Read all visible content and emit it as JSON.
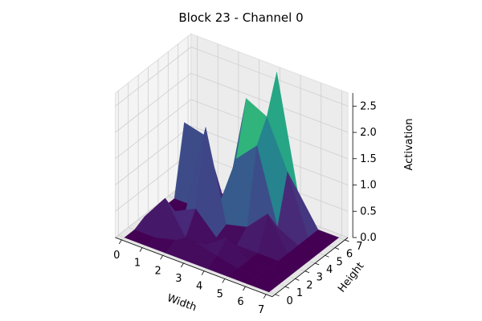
{
  "chart_data": {
    "type": "surface3d",
    "title": "Block 23 - Channel 0",
    "xlabel": "Width",
    "ylabel": "Height",
    "zlabel": "Activation",
    "x": [
      0,
      1,
      2,
      3,
      4,
      5,
      6,
      7
    ],
    "y": [
      0,
      1,
      2,
      3,
      4,
      5,
      6,
      7
    ],
    "xticks": [
      "0",
      "1",
      "2",
      "3",
      "4",
      "5",
      "6",
      "7"
    ],
    "yticks": [
      "0",
      "1",
      "2",
      "3",
      "4",
      "5",
      "6",
      "7"
    ],
    "zticks": [
      "0.0",
      "0.5",
      "1.0",
      "1.5",
      "2.0",
      "2.5"
    ],
    "zlim": [
      0,
      2.75
    ],
    "colormap": "viridis",
    "grid": true,
    "z": [
      [
        0.0,
        0.0,
        0.0,
        0.0,
        0.0,
        0.0,
        0.0,
        0.0
      ],
      [
        0.0,
        0.0,
        0.1,
        0.2,
        0.1,
        0.0,
        0.0,
        0.0
      ],
      [
        0.1,
        0.6,
        0.0,
        0.0,
        0.3,
        0.0,
        0.0,
        0.0
      ],
      [
        0.0,
        0.2,
        0.4,
        0.0,
        0.0,
        0.0,
        0.0,
        0.0
      ],
      [
        0.0,
        0.0,
        1.8,
        0.1,
        0.2,
        0.6,
        0.0,
        0.0
      ],
      [
        0.0,
        0.0,
        0.0,
        1.2,
        1.6,
        0.2,
        0.0,
        0.0
      ],
      [
        1.3,
        1.2,
        0.0,
        2.2,
        2.0,
        1.1,
        0.0,
        0.0
      ],
      [
        0.0,
        0.0,
        0.0,
        0.0,
        2.7,
        0.6,
        0.0,
        0.0
      ]
    ]
  }
}
